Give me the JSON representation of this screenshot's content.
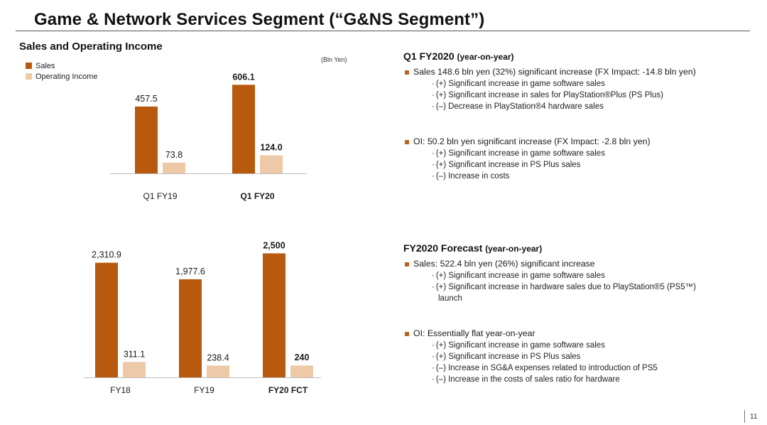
{
  "page": {
    "title": "Game & Network Services Segment (“G&NS Segment”)",
    "section_title": "Sales and Operating Income",
    "unit": "(Bln Yen)",
    "page_number": "11"
  },
  "colors": {
    "sales": "#b85a0e",
    "oi": "#eec9a7"
  },
  "legend": [
    {
      "label": "Sales",
      "color": "#b85a0e"
    },
    {
      "label": "Operating Income",
      "color": "#eec9a7"
    }
  ],
  "chart_data": [
    {
      "type": "bar",
      "title": "Sales and Operating Income (Q1)",
      "categories": [
        "Q1 FY19",
        "Q1 FY20"
      ],
      "series": [
        {
          "name": "Sales",
          "values": [
            457.5,
            606.1
          ],
          "labels": [
            "457.5",
            "606.1"
          ],
          "bold": [
            false,
            true
          ]
        },
        {
          "name": "Operating Income",
          "values": [
            73.8,
            124.0
          ],
          "labels": [
            "73.8",
            "124.0"
          ],
          "bold": [
            false,
            true
          ]
        }
      ],
      "ylim": [
        0,
        700
      ]
    },
    {
      "type": "bar",
      "title": "Sales and Operating Income (Full Year)",
      "categories": [
        "FY18",
        "FY19",
        "FY20 FCT"
      ],
      "series": [
        {
          "name": "Sales",
          "values": [
            2310.9,
            1977.6,
            2500
          ],
          "labels": [
            "2,310.9",
            "1,977.6",
            "2,500"
          ],
          "bold": [
            false,
            false,
            true
          ]
        },
        {
          "name": "Operating Income",
          "values": [
            311.1,
            238.4,
            240
          ],
          "labels": [
            "311.1",
            "238.4",
            "240"
          ],
          "bold": [
            false,
            false,
            true
          ]
        }
      ],
      "ylim": [
        0,
        2650
      ]
    }
  ],
  "q1": {
    "heading": "Q1 FY2020",
    "heading_sub": "(year-on-year)",
    "sales_bullet": "Sales  148.6 bln yen (32%) significant increase (FX Impact: -14.8 bln yen)",
    "sales_items": [
      "(+) Significant increase in game software sales",
      "(+) Significant increase in sales for PlayStation®Plus (PS Plus)",
      "(–) Decrease in PlayStation®4 hardware sales"
    ],
    "oi_bullet": "OI: 50.2 bln yen significant increase (FX Impact:  -2.8 bln yen)",
    "oi_items": [
      "(+) Significant increase in game software sales",
      "(+) Significant increase in PS Plus sales",
      "(–) Increase in costs"
    ]
  },
  "forecast": {
    "heading": "FY2020 Forecast",
    "heading_sub": "(year-on-year)",
    "sales_bullet": "Sales: 522.4 bln yen (26%) significant increase",
    "sales_items": [
      "(+) Significant increase in game software sales",
      "(+) Significant increase in hardware sales due to PlayStation®5 (PS5™) launch"
    ],
    "oi_bullet": "OI: Essentially flat year-on-year",
    "oi_items": [
      "(+) Significant increase in game software sales",
      "(+) Significant increase in PS Plus sales",
      "(–) Increase in SG&A expenses related to introduction of PS5",
      "(–) Increase in the costs of sales ratio for hardware"
    ]
  }
}
